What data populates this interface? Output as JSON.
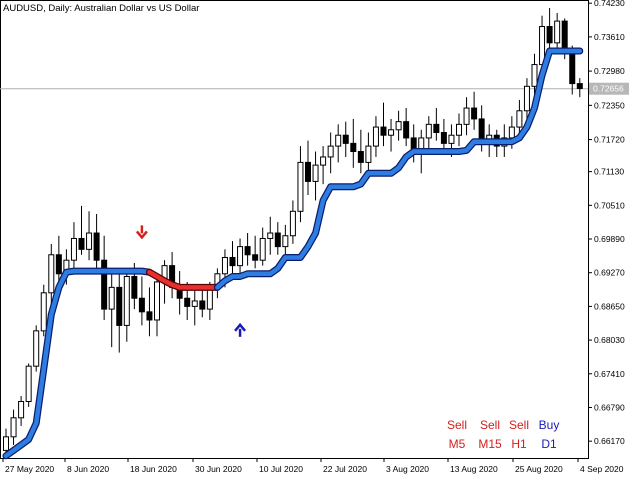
{
  "title": "AUDUSD, Daily:  Australian Dollar vs US Dollar",
  "chart_data": {
    "type": "candlestick",
    "symbol": "AUDUSD",
    "timeframe": "Daily",
    "description": "Australian Dollar vs US Dollar",
    "x_ticks": [
      "27 May 2020",
      "8 Jun 2020",
      "18 Jun 2020",
      "30 Jun 2020",
      "10 Jul 2020",
      "22 Jul 2020",
      "3 Aug 2020",
      "13 Aug 2020",
      "25 Aug 2020",
      "4 Sep 2020"
    ],
    "y_ticks": [
      0.7423,
      0.7361,
      0.7298,
      0.7235,
      0.7172,
      0.7113,
      0.7051,
      0.6989,
      0.6927,
      0.6865,
      0.6803,
      0.6741,
      0.6679,
      0.6617
    ],
    "ylim": [
      0.6586,
      0.7427
    ],
    "current_price": 0.72656,
    "current_price_label": "0.72656",
    "candles": [
      {
        "o": 0.66,
        "h": 0.664,
        "l": 0.659,
        "c": 0.6625
      },
      {
        "o": 0.6625,
        "h": 0.6675,
        "l": 0.661,
        "c": 0.666
      },
      {
        "o": 0.666,
        "h": 0.67,
        "l": 0.6645,
        "c": 0.669
      },
      {
        "o": 0.669,
        "h": 0.676,
        "l": 0.668,
        "c": 0.6755
      },
      {
        "o": 0.6755,
        "h": 0.683,
        "l": 0.6745,
        "c": 0.682
      },
      {
        "o": 0.682,
        "h": 0.6905,
        "l": 0.681,
        "c": 0.689
      },
      {
        "o": 0.689,
        "h": 0.698,
        "l": 0.687,
        "c": 0.696
      },
      {
        "o": 0.696,
        "h": 0.6995,
        "l": 0.69,
        "c": 0.6925
      },
      {
        "o": 0.6925,
        "h": 0.697,
        "l": 0.6905,
        "c": 0.695
      },
      {
        "o": 0.695,
        "h": 0.702,
        "l": 0.693,
        "c": 0.699
      },
      {
        "o": 0.699,
        "h": 0.705,
        "l": 0.696,
        "c": 0.697
      },
      {
        "o": 0.697,
        "h": 0.704,
        "l": 0.695,
        "c": 0.7
      },
      {
        "o": 0.7,
        "h": 0.7035,
        "l": 0.6935,
        "c": 0.695
      },
      {
        "o": 0.695,
        "h": 0.6995,
        "l": 0.684,
        "c": 0.686
      },
      {
        "o": 0.686,
        "h": 0.693,
        "l": 0.679,
        "c": 0.69
      },
      {
        "o": 0.69,
        "h": 0.6935,
        "l": 0.678,
        "c": 0.683
      },
      {
        "o": 0.683,
        "h": 0.693,
        "l": 0.68,
        "c": 0.692
      },
      {
        "o": 0.692,
        "h": 0.6945,
        "l": 0.686,
        "c": 0.688
      },
      {
        "o": 0.688,
        "h": 0.692,
        "l": 0.683,
        "c": 0.6855
      },
      {
        "o": 0.6855,
        "h": 0.69,
        "l": 0.681,
        "c": 0.684
      },
      {
        "o": 0.684,
        "h": 0.6925,
        "l": 0.681,
        "c": 0.691
      },
      {
        "o": 0.691,
        "h": 0.695,
        "l": 0.687,
        "c": 0.694
      },
      {
        "o": 0.694,
        "h": 0.6965,
        "l": 0.688,
        "c": 0.69
      },
      {
        "o": 0.69,
        "h": 0.693,
        "l": 0.685,
        "c": 0.688
      },
      {
        "o": 0.688,
        "h": 0.691,
        "l": 0.684,
        "c": 0.6865
      },
      {
        "o": 0.6865,
        "h": 0.6895,
        "l": 0.683,
        "c": 0.6875
      },
      {
        "o": 0.6875,
        "h": 0.6905,
        "l": 0.6845,
        "c": 0.686
      },
      {
        "o": 0.686,
        "h": 0.691,
        "l": 0.684,
        "c": 0.69
      },
      {
        "o": 0.69,
        "h": 0.6935,
        "l": 0.688,
        "c": 0.6925
      },
      {
        "o": 0.6925,
        "h": 0.697,
        "l": 0.69,
        "c": 0.6955
      },
      {
        "o": 0.6955,
        "h": 0.6985,
        "l": 0.692,
        "c": 0.694
      },
      {
        "o": 0.694,
        "h": 0.699,
        "l": 0.6925,
        "c": 0.6975
      },
      {
        "o": 0.6975,
        "h": 0.7,
        "l": 0.694,
        "c": 0.696
      },
      {
        "o": 0.696,
        "h": 0.6995,
        "l": 0.6935,
        "c": 0.695
      },
      {
        "o": 0.695,
        "h": 0.701,
        "l": 0.694,
        "c": 0.699
      },
      {
        "o": 0.699,
        "h": 0.703,
        "l": 0.696,
        "c": 0.7
      },
      {
        "o": 0.7,
        "h": 0.702,
        "l": 0.696,
        "c": 0.6975
      },
      {
        "o": 0.6975,
        "h": 0.7015,
        "l": 0.695,
        "c": 0.6995
      },
      {
        "o": 0.6995,
        "h": 0.706,
        "l": 0.698,
        "c": 0.704
      },
      {
        "o": 0.704,
        "h": 0.716,
        "l": 0.702,
        "c": 0.713
      },
      {
        "o": 0.713,
        "h": 0.717,
        "l": 0.707,
        "c": 0.7095
      },
      {
        "o": 0.7095,
        "h": 0.715,
        "l": 0.706,
        "c": 0.7125
      },
      {
        "o": 0.7125,
        "h": 0.716,
        "l": 0.709,
        "c": 0.714
      },
      {
        "o": 0.714,
        "h": 0.7185,
        "l": 0.711,
        "c": 0.716
      },
      {
        "o": 0.716,
        "h": 0.72,
        "l": 0.713,
        "c": 0.718
      },
      {
        "o": 0.718,
        "h": 0.7205,
        "l": 0.714,
        "c": 0.7165
      },
      {
        "o": 0.7165,
        "h": 0.721,
        "l": 0.712,
        "c": 0.715
      },
      {
        "o": 0.715,
        "h": 0.719,
        "l": 0.711,
        "c": 0.713
      },
      {
        "o": 0.713,
        "h": 0.7185,
        "l": 0.71,
        "c": 0.716
      },
      {
        "o": 0.716,
        "h": 0.7215,
        "l": 0.714,
        "c": 0.7195
      },
      {
        "o": 0.7195,
        "h": 0.724,
        "l": 0.716,
        "c": 0.718
      },
      {
        "o": 0.718,
        "h": 0.721,
        "l": 0.715,
        "c": 0.719
      },
      {
        "o": 0.719,
        "h": 0.7225,
        "l": 0.717,
        "c": 0.7205
      },
      {
        "o": 0.7205,
        "h": 0.723,
        "l": 0.716,
        "c": 0.7175
      },
      {
        "o": 0.7175,
        "h": 0.72,
        "l": 0.713,
        "c": 0.715
      },
      {
        "o": 0.715,
        "h": 0.719,
        "l": 0.711,
        "c": 0.7175
      },
      {
        "o": 0.7175,
        "h": 0.7215,
        "l": 0.715,
        "c": 0.72
      },
      {
        "o": 0.72,
        "h": 0.723,
        "l": 0.717,
        "c": 0.7185
      },
      {
        "o": 0.7185,
        "h": 0.721,
        "l": 0.715,
        "c": 0.7165
      },
      {
        "o": 0.7165,
        "h": 0.72,
        "l": 0.714,
        "c": 0.718
      },
      {
        "o": 0.718,
        "h": 0.722,
        "l": 0.716,
        "c": 0.72
      },
      {
        "o": 0.72,
        "h": 0.725,
        "l": 0.718,
        "c": 0.723
      },
      {
        "o": 0.723,
        "h": 0.726,
        "l": 0.719,
        "c": 0.721
      },
      {
        "o": 0.721,
        "h": 0.7235,
        "l": 0.715,
        "c": 0.7165
      },
      {
        "o": 0.7165,
        "h": 0.72,
        "l": 0.714,
        "c": 0.718
      },
      {
        "o": 0.718,
        "h": 0.719,
        "l": 0.714,
        "c": 0.716
      },
      {
        "o": 0.716,
        "h": 0.72,
        "l": 0.714,
        "c": 0.7175
      },
      {
        "o": 0.7175,
        "h": 0.7215,
        "l": 0.7155,
        "c": 0.7195
      },
      {
        "o": 0.7195,
        "h": 0.7245,
        "l": 0.718,
        "c": 0.7225
      },
      {
        "o": 0.7225,
        "h": 0.7285,
        "l": 0.721,
        "c": 0.727
      },
      {
        "o": 0.727,
        "h": 0.733,
        "l": 0.725,
        "c": 0.731
      },
      {
        "o": 0.731,
        "h": 0.74,
        "l": 0.729,
        "c": 0.738
      },
      {
        "o": 0.738,
        "h": 0.7414,
        "l": 0.733,
        "c": 0.735
      },
      {
        "o": 0.735,
        "h": 0.7405,
        "l": 0.733,
        "c": 0.739
      },
      {
        "o": 0.739,
        "h": 0.7395,
        "l": 0.732,
        "c": 0.7335
      },
      {
        "o": 0.7335,
        "h": 0.7345,
        "l": 0.7255,
        "c": 0.7275
      },
      {
        "o": 0.7275,
        "h": 0.7285,
        "l": 0.725,
        "c": 0.7266
      }
    ],
    "supertrend": [
      0.659,
      0.66,
      0.661,
      0.662,
      0.665,
      0.675,
      0.685,
      0.69,
      0.6928,
      0.693,
      0.693,
      0.693,
      0.693,
      0.693,
      0.693,
      0.693,
      0.693,
      0.693,
      0.693,
      0.6928,
      0.692,
      0.6912,
      0.6905,
      0.69,
      0.69,
      0.69,
      0.69,
      0.69,
      0.69,
      0.6912,
      0.692,
      0.692,
      0.6925,
      0.6925,
      0.6925,
      0.6925,
      0.6935,
      0.6955,
      0.6955,
      0.6955,
      0.6975,
      0.7,
      0.706,
      0.7085,
      0.7085,
      0.7085,
      0.7085,
      0.709,
      0.711,
      0.711,
      0.711,
      0.711,
      0.712,
      0.714,
      0.715,
      0.715,
      0.715,
      0.715,
      0.715,
      0.715,
      0.715,
      0.7152,
      0.7168,
      0.7168,
      0.7168,
      0.7168,
      0.7168,
      0.7168,
      0.7175,
      0.7195,
      0.723,
      0.729,
      0.7335,
      0.7335,
      0.7335,
      0.7335,
      0.7335
    ],
    "supertrend_down_range": [
      19,
      28
    ],
    "colors": {
      "trend_up": "#2e7de0",
      "trend_down": "#e63030",
      "trend_outline": "#0b1d6e",
      "down_outline": "#5a0000",
      "buy": "#1a1ab8",
      "sell": "#d42020",
      "price_line": "#b0b0b0",
      "price_badge": "#b7b7b7"
    },
    "signals": [
      {
        "type": "sell-arrow",
        "index": 18,
        "price": 0.7003
      },
      {
        "type": "buy-arrow",
        "index": 31,
        "price": 0.682
      }
    ]
  },
  "timeframe_panel": {
    "signals": [
      "Sell",
      "Sell",
      "Sell",
      "Buy"
    ],
    "timeframes": [
      "M5",
      "M15",
      "H1",
      "D1"
    ],
    "signal_colors": [
      "#d42020",
      "#d42020",
      "#d42020",
      "#1a1ab8"
    ],
    "timeframe_colors": [
      "#d42020",
      "#d42020",
      "#d42020",
      "#1a1ab8"
    ]
  }
}
